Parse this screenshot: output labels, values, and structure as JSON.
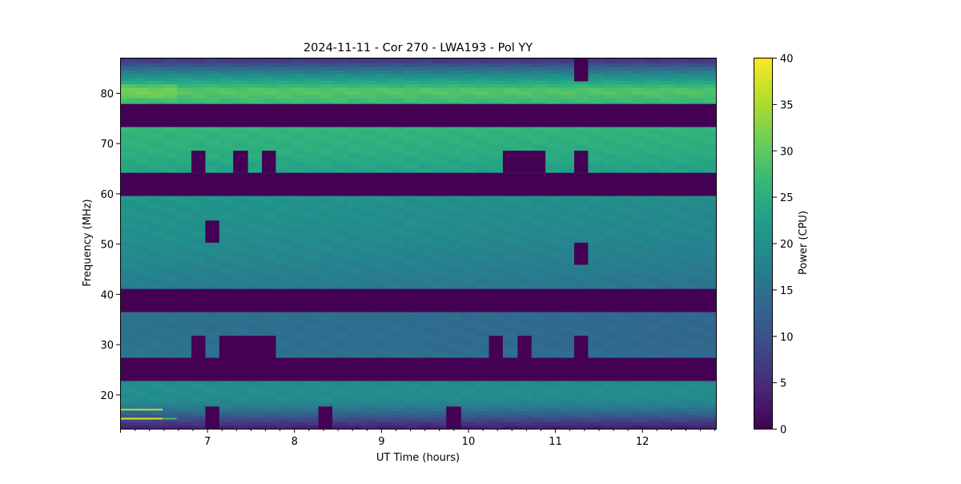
{
  "chart_data": {
    "type": "heatmap",
    "title": "2024-11-11 - Cor 270 - LWA193 - Pol YY",
    "xlabel": "UT Time (hours)",
    "ylabel": "Frequency (MHz)",
    "xlim": [
      6.0,
      12.85
    ],
    "ylim": [
      13.2,
      87.0
    ],
    "xticks": [
      7,
      8,
      9,
      10,
      11,
      12
    ],
    "yticks": [
      20,
      30,
      40,
      50,
      60,
      70,
      80
    ],
    "time_bin_hours": 0.1633,
    "colorbar": {
      "label": "Power (CPU)",
      "range": [
        0,
        40
      ],
      "ticks": [
        0,
        5,
        10,
        15,
        20,
        25,
        30,
        35,
        40
      ],
      "colormap": "viridis"
    },
    "power_profile": {
      "freq_mhz": [
        13.2,
        14.5,
        16,
        17.6,
        19,
        21,
        22.7,
        27.3,
        30,
        36.4,
        41,
        46,
        52,
        59.5,
        64.1,
        68,
        73.2,
        77.8,
        79,
        80.5,
        82,
        84,
        85.5,
        87
      ],
      "power": [
        3,
        7,
        12,
        17,
        19.5,
        20,
        19.5,
        15.5,
        15,
        15,
        17,
        18.5,
        20,
        21,
        23,
        25,
        26.5,
        27,
        28,
        30,
        25,
        18,
        11,
        5
      ]
    },
    "masked_bands_mhz": [
      [
        73.2,
        77.8
      ],
      [
        59.5,
        64.1
      ],
      [
        36.4,
        41.0
      ],
      [
        22.7,
        27.3
      ]
    ],
    "masked_blocks": [
      {
        "t": [
          11.22,
          11.38
        ],
        "f": [
          82.3,
          87.0
        ]
      },
      {
        "t": [
          6.82,
          6.98
        ],
        "f": [
          64.1,
          68.5
        ]
      },
      {
        "t": [
          7.3,
          7.47
        ],
        "f": [
          64.1,
          68.5
        ]
      },
      {
        "t": [
          7.63,
          7.79
        ],
        "f": [
          64.1,
          68.5
        ]
      },
      {
        "t": [
          10.4,
          10.89
        ],
        "f": [
          64.1,
          68.5
        ]
      },
      {
        "t": [
          11.22,
          11.38
        ],
        "f": [
          64.1,
          68.5
        ]
      },
      {
        "t": [
          6.98,
          7.14
        ],
        "f": [
          50.2,
          54.6
        ]
      },
      {
        "t": [
          11.22,
          11.38
        ],
        "f": [
          45.8,
          50.2
        ]
      },
      {
        "t": [
          6.82,
          6.98
        ],
        "f": [
          27.3,
          31.7
        ]
      },
      {
        "t": [
          7.14,
          7.79
        ],
        "f": [
          27.3,
          31.7
        ]
      },
      {
        "t": [
          10.24,
          10.4
        ],
        "f": [
          27.3,
          31.7
        ]
      },
      {
        "t": [
          10.57,
          10.73
        ],
        "f": [
          27.3,
          31.7
        ]
      },
      {
        "t": [
          11.22,
          11.38
        ],
        "f": [
          27.3,
          31.7
        ]
      },
      {
        "t": [
          6.98,
          7.14
        ],
        "f": [
          13.2,
          17.6
        ]
      },
      {
        "t": [
          8.28,
          8.44
        ],
        "f": [
          13.2,
          17.6
        ]
      },
      {
        "t": [
          9.75,
          9.92
        ],
        "f": [
          13.2,
          17.6
        ]
      }
    ],
    "bright_rfi": [
      {
        "t": [
          6.0,
          6.49
        ],
        "f": 15.2,
        "power": 38
      },
      {
        "t": [
          6.0,
          6.49
        ],
        "f": 17.0,
        "power": 36
      },
      {
        "t": [
          6.49,
          6.65
        ],
        "f": 15.2,
        "power": 28
      }
    ],
    "grid": false
  }
}
